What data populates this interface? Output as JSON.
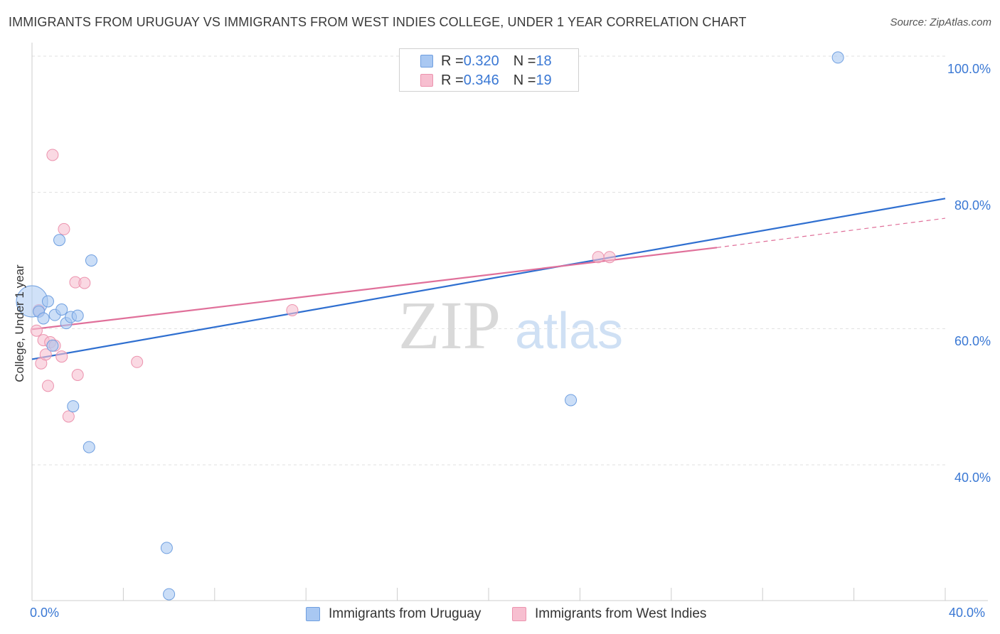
{
  "header": {
    "title": "IMMIGRANTS FROM URUGUAY VS IMMIGRANTS FROM WEST INDIES COLLEGE, UNDER 1 YEAR CORRELATION CHART",
    "source": "Source: ZipAtlas.com"
  },
  "watermark": {
    "zip": "ZIP",
    "atlas": "atlas"
  },
  "legend": {
    "rows": [
      {
        "r_label": "R = ",
        "r_value": "0.320",
        "n_label": "N = ",
        "n_value": "18"
      },
      {
        "r_label": "R = ",
        "r_value": "0.346",
        "n_label": "N = ",
        "n_value": "19"
      }
    ],
    "bottom": [
      "Immigrants from Uruguay",
      "Immigrants from West Indies"
    ]
  },
  "axes": {
    "x_min_label": "0.0%",
    "x_max_label": "40.0%",
    "y_ticks": [
      "100.0%",
      "80.0%",
      "60.0%",
      "40.0%"
    ],
    "ylabel": "College, Under 1 year"
  },
  "colors": {
    "blue_fill": "#a9c8f2",
    "blue_stroke": "#6f9fe0",
    "blue_line": "#2f6fd0",
    "pink_fill": "#f7bfd0",
    "pink_stroke": "#ec93ae",
    "pink_line": "#e0709a",
    "accent_text": "#3a78d4"
  },
  "chart_data": {
    "type": "scatter",
    "title": "IMMIGRANTS FROM URUGUAY VS IMMIGRANTS FROM WEST INDIES COLLEGE, UNDER 1 YEAR CORRELATION CHART",
    "xlabel": "",
    "ylabel": "College, Under 1 year",
    "xlim": [
      0,
      40
    ],
    "ylim": [
      20.5,
      102
    ],
    "grid": true,
    "series": [
      {
        "name": "Immigrants from Uruguay",
        "r": 0.32,
        "n": 18,
        "points": [
          {
            "x": 0.0,
            "y": 64.0,
            "size": "large"
          },
          {
            "x": 0.3,
            "y": 62.5
          },
          {
            "x": 0.5,
            "y": 61.5
          },
          {
            "x": 0.7,
            "y": 64.0
          },
          {
            "x": 1.0,
            "y": 62.0
          },
          {
            "x": 1.2,
            "y": 73.0
          },
          {
            "x": 1.3,
            "y": 62.8
          },
          {
            "x": 1.5,
            "y": 60.8
          },
          {
            "x": 1.7,
            "y": 61.7
          },
          {
            "x": 2.0,
            "y": 61.9
          },
          {
            "x": 2.6,
            "y": 70.0
          },
          {
            "x": 1.8,
            "y": 48.6
          },
          {
            "x": 2.5,
            "y": 42.6
          },
          {
            "x": 5.9,
            "y": 27.8
          },
          {
            "x": 6.0,
            "y": 21.0
          },
          {
            "x": 35.3,
            "y": 99.8
          },
          {
            "x": 23.6,
            "y": 49.5
          },
          {
            "x": 0.9,
            "y": 57.5
          }
        ],
        "trend": {
          "x": [
            0,
            40
          ],
          "y": [
            55.5,
            79.1
          ]
        }
      },
      {
        "name": "Immigrants from West Indies",
        "r": 0.346,
        "n": 19,
        "points": [
          {
            "x": 0.2,
            "y": 59.7
          },
          {
            "x": 0.3,
            "y": 62.7
          },
          {
            "x": 0.4,
            "y": 54.9
          },
          {
            "x": 0.5,
            "y": 58.3
          },
          {
            "x": 0.6,
            "y": 56.2
          },
          {
            "x": 0.7,
            "y": 51.6
          },
          {
            "x": 0.8,
            "y": 58.0
          },
          {
            "x": 0.9,
            "y": 85.5
          },
          {
            "x": 1.0,
            "y": 57.5
          },
          {
            "x": 1.3,
            "y": 55.9
          },
          {
            "x": 1.4,
            "y": 74.6
          },
          {
            "x": 1.6,
            "y": 47.1
          },
          {
            "x": 1.9,
            "y": 66.8
          },
          {
            "x": 2.0,
            "y": 53.2
          },
          {
            "x": 2.3,
            "y": 66.7
          },
          {
            "x": 4.6,
            "y": 55.1
          },
          {
            "x": 11.4,
            "y": 62.7
          },
          {
            "x": 24.8,
            "y": 70.5
          },
          {
            "x": 25.3,
            "y": 70.5
          }
        ],
        "trend": {
          "x": [
            0,
            30
          ],
          "y": [
            59.9,
            71.9
          ]
        },
        "trend_dashed": {
          "x": [
            30,
            40
          ],
          "y": [
            71.9,
            76.2
          ]
        }
      }
    ]
  }
}
